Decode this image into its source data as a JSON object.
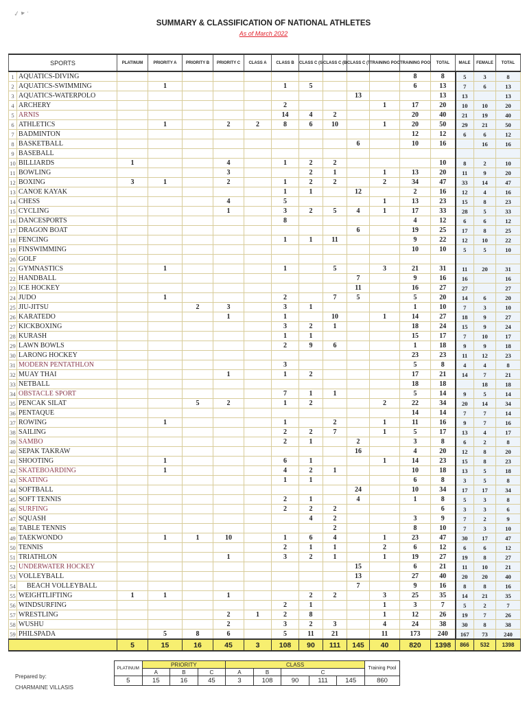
{
  "header": {
    "title": "SUMMARY & CLASSIFICATION OF NATIONAL ATHLETES",
    "subtitle": "As of March 2022"
  },
  "columns": [
    "SPORTS",
    "PLATINUM",
    "PRIORITY A",
    "PRIORITY B",
    "PRIORITY C",
    "CLASS A",
    "CLASS B",
    "CLASS C (SILVER)",
    "CLASS C (BRONZE)",
    "CLASS C (TEAM)",
    "TRAINING POOL A",
    "TRAINING POOL B",
    "TOTAL",
    "MALE",
    "FEMALE",
    "TOTAL"
  ],
  "colors": {
    "highlight_name": "#8a3a4a",
    "totals_bg": "#f7ef70",
    "subtitle": "#e0202a"
  },
  "rows": [
    {
      "n": "1",
      "sport": "AQUATICS-DIVING",
      "v": [
        "",
        "",
        "",
        "",
        "",
        "",
        "",
        "",
        "",
        "",
        "8",
        "8",
        "5",
        "3",
        "8"
      ]
    },
    {
      "n": "2",
      "sport": "AQUATICS-SWIMMING",
      "v": [
        "",
        "1",
        "",
        "",
        "",
        "1",
        "5",
        "",
        "",
        "",
        "6",
        "13",
        "7",
        "6",
        "13"
      ]
    },
    {
      "n": "3",
      "sport": "AQUATICS-WATERPOLO",
      "v": [
        "",
        "",
        "",
        "",
        "",
        "",
        "",
        "",
        "13",
        "",
        "",
        "13",
        "13",
        "",
        "13"
      ]
    },
    {
      "n": "4",
      "sport": "ARCHERY",
      "v": [
        "",
        "",
        "",
        "",
        "",
        "2",
        "",
        "",
        "",
        "1",
        "17",
        "20",
        "10",
        "10",
        "20"
      ]
    },
    {
      "n": "5",
      "sport": "ARNIS",
      "hl": true,
      "v": [
        "",
        "",
        "",
        "",
        "",
        "14",
        "4",
        "2",
        "",
        "",
        "20",
        "40",
        "21",
        "19",
        "40"
      ]
    },
    {
      "n": "6",
      "sport": "ATHLETICS",
      "v": [
        "",
        "1",
        "",
        "2",
        "2",
        "8",
        "6",
        "10",
        "",
        "1",
        "20",
        "50",
        "29",
        "21",
        "50"
      ]
    },
    {
      "n": "7",
      "sport": "BADMINTON",
      "v": [
        "",
        "",
        "",
        "",
        "",
        "",
        "",
        "",
        "",
        "",
        "12",
        "12",
        "6",
        "6",
        "12"
      ]
    },
    {
      "n": "8",
      "sport": "BASKETBALL",
      "v": [
        "",
        "",
        "",
        "",
        "",
        "",
        "",
        "",
        "6",
        "",
        "10",
        "16",
        "",
        "16",
        "16"
      ]
    },
    {
      "n": "9",
      "sport": "BASEBALL",
      "v": [
        "",
        "",
        "",
        "",
        "",
        "",
        "",
        "",
        "",
        "",
        "",
        "",
        "",
        "",
        ""
      ]
    },
    {
      "n": "10",
      "sport": "BILLIARDS",
      "v": [
        "1",
        "",
        "",
        "4",
        "",
        "1",
        "2",
        "2",
        "",
        "",
        "",
        "10",
        "8",
        "2",
        "10"
      ]
    },
    {
      "n": "11",
      "sport": "BOWLING",
      "v": [
        "",
        "",
        "",
        "3",
        "",
        "",
        "2",
        "1",
        "",
        "1",
        "13",
        "20",
        "11",
        "9",
        "20"
      ]
    },
    {
      "n": "12",
      "sport": "BOXING",
      "v": [
        "3",
        "1",
        "",
        "2",
        "",
        "1",
        "2",
        "2",
        "",
        "2",
        "34",
        "47",
        "33",
        "14",
        "47"
      ]
    },
    {
      "n": "13",
      "sport": "CANOE KAYAK",
      "v": [
        "",
        "",
        "",
        "",
        "",
        "1",
        "1",
        "",
        "12",
        "",
        "2",
        "16",
        "12",
        "4",
        "16"
      ]
    },
    {
      "n": "14",
      "sport": "CHESS",
      "v": [
        "",
        "",
        "",
        "4",
        "",
        "5",
        "",
        "",
        "",
        "1",
        "13",
        "23",
        "15",
        "8",
        "23"
      ]
    },
    {
      "n": "15",
      "sport": "CYCLING",
      "v": [
        "",
        "",
        "",
        "1",
        "",
        "3",
        "2",
        "5",
        "4",
        "1",
        "17",
        "33",
        "28",
        "5",
        "33"
      ]
    },
    {
      "n": "16",
      "sport": "DANCESPORTS",
      "v": [
        "",
        "",
        "",
        "",
        "",
        "8",
        "",
        "",
        "",
        "",
        "4",
        "12",
        "6",
        "6",
        "12"
      ]
    },
    {
      "n": "17",
      "sport": "DRAGON BOAT",
      "v": [
        "",
        "",
        "",
        "",
        "",
        "",
        "",
        "",
        "6",
        "",
        "19",
        "25",
        "17",
        "8",
        "25"
      ]
    },
    {
      "n": "18",
      "sport": "FENCING",
      "v": [
        "",
        "",
        "",
        "",
        "",
        "1",
        "1",
        "11",
        "",
        "",
        "9",
        "22",
        "12",
        "10",
        "22"
      ]
    },
    {
      "n": "19",
      "sport": "FINSWIMMING",
      "v": [
        "",
        "",
        "",
        "",
        "",
        "",
        "",
        "",
        "",
        "",
        "10",
        "10",
        "5",
        "5",
        "10"
      ]
    },
    {
      "n": "20",
      "sport": "GOLF",
      "v": [
        "",
        "",
        "",
        "",
        "",
        "",
        "",
        "",
        "",
        "",
        "",
        "",
        "",
        "",
        ""
      ]
    },
    {
      "n": "21",
      "sport": "GYMNASTICS",
      "v": [
        "",
        "1",
        "",
        "",
        "",
        "1",
        "",
        "5",
        "",
        "3",
        "21",
        "31",
        "11",
        "20",
        "31"
      ]
    },
    {
      "n": "22",
      "sport": "HANDBALL",
      "v": [
        "",
        "",
        "",
        "",
        "",
        "",
        "",
        "",
        "7",
        "",
        "9",
        "16",
        "16",
        "",
        "16"
      ]
    },
    {
      "n": "23",
      "sport": "ICE HOCKEY",
      "v": [
        "",
        "",
        "",
        "",
        "",
        "",
        "",
        "",
        "11",
        "",
        "16",
        "27",
        "27",
        "",
        "27"
      ]
    },
    {
      "n": "24",
      "sport": "JUDO",
      "v": [
        "",
        "1",
        "",
        "",
        "",
        "2",
        "",
        "7",
        "5",
        "",
        "5",
        "20",
        "14",
        "6",
        "20"
      ]
    },
    {
      "n": "25",
      "sport": "JIU-JITSU",
      "v": [
        "",
        "",
        "2",
        "3",
        "",
        "3",
        "1",
        "",
        "",
        "",
        "1",
        "10",
        "7",
        "3",
        "10"
      ]
    },
    {
      "n": "26",
      "sport": "KARATEDO",
      "v": [
        "",
        "",
        "",
        "1",
        "",
        "1",
        "",
        "10",
        "",
        "1",
        "14",
        "27",
        "18",
        "9",
        "27"
      ]
    },
    {
      "n": "27",
      "sport": "KICKBOXING",
      "v": [
        "",
        "",
        "",
        "",
        "",
        "3",
        "2",
        "1",
        "",
        "",
        "18",
        "24",
        "15",
        "9",
        "24"
      ]
    },
    {
      "n": "28",
      "sport": "KURASH",
      "v": [
        "",
        "",
        "",
        "",
        "",
        "1",
        "1",
        "",
        "",
        "",
        "15",
        "17",
        "7",
        "10",
        "17"
      ]
    },
    {
      "n": "29",
      "sport": "LAWN BOWLS",
      "v": [
        "",
        "",
        "",
        "",
        "",
        "2",
        "9",
        "6",
        "",
        "",
        "1",
        "18",
        "9",
        "9",
        "18"
      ]
    },
    {
      "n": "30",
      "sport": "LARONG HOCKEY",
      "v": [
        "",
        "",
        "",
        "",
        "",
        "",
        "",
        "",
        "",
        "",
        "23",
        "23",
        "11",
        "12",
        "23"
      ]
    },
    {
      "n": "31",
      "sport": "MODERN PENTATHLON",
      "hl": true,
      "v": [
        "",
        "",
        "",
        "",
        "",
        "3",
        "",
        "",
        "",
        "",
        "5",
        "8",
        "4",
        "4",
        "8"
      ]
    },
    {
      "n": "32",
      "sport": "MUAY THAI",
      "v": [
        "",
        "",
        "",
        "1",
        "",
        "1",
        "2",
        "",
        "",
        "",
        "17",
        "21",
        "14",
        "7",
        "21"
      ]
    },
    {
      "n": "33",
      "sport": "NETBALL",
      "v": [
        "",
        "",
        "",
        "",
        "",
        "",
        "",
        "",
        "",
        "",
        "18",
        "18",
        "",
        "18",
        "18"
      ]
    },
    {
      "n": "34",
      "sport": "OBSTACLE SPORT",
      "hl": true,
      "v": [
        "",
        "",
        "",
        "",
        "",
        "7",
        "1",
        "1",
        "",
        "",
        "5",
        "14",
        "9",
        "5",
        "14"
      ]
    },
    {
      "n": "35",
      "sport": "PENCAK SILAT",
      "v": [
        "",
        "",
        "5",
        "2",
        "",
        "1",
        "2",
        "",
        "",
        "2",
        "22",
        "34",
        "20",
        "14",
        "34"
      ]
    },
    {
      "n": "36",
      "sport": "PENTAQUE",
      "v": [
        "",
        "",
        "",
        "",
        "",
        "",
        "",
        "",
        "",
        "",
        "14",
        "14",
        "7",
        "7",
        "14"
      ]
    },
    {
      "n": "37",
      "sport": "ROWING",
      "v": [
        "",
        "1",
        "",
        "",
        "",
        "1",
        "",
        "2",
        "",
        "1",
        "11",
        "16",
        "9",
        "7",
        "16"
      ]
    },
    {
      "n": "38",
      "sport": "SAILING",
      "v": [
        "",
        "",
        "",
        "",
        "",
        "2",
        "2",
        "7",
        "",
        "1",
        "5",
        "17",
        "13",
        "4",
        "17"
      ]
    },
    {
      "n": "39",
      "sport": "SAMBO",
      "hl": true,
      "v": [
        "",
        "",
        "",
        "",
        "",
        "2",
        "1",
        "",
        "2",
        "",
        "3",
        "8",
        "6",
        "2",
        "8"
      ]
    },
    {
      "n": "40",
      "sport": "SEPAK TAKRAW",
      "v": [
        "",
        "",
        "",
        "",
        "",
        "",
        "",
        "",
        "16",
        "",
        "4",
        "20",
        "12",
        "8",
        "20"
      ]
    },
    {
      "n": "41",
      "sport": "SHOOTING",
      "v": [
        "",
        "1",
        "",
        "",
        "",
        "6",
        "1",
        "",
        "",
        "1",
        "14",
        "23",
        "15",
        "8",
        "23"
      ]
    },
    {
      "n": "42",
      "sport": "SKATEBOARDING",
      "hl": true,
      "v": [
        "",
        "1",
        "",
        "",
        "",
        "4",
        "2",
        "1",
        "",
        "",
        "10",
        "18",
        "13",
        "5",
        "18"
      ]
    },
    {
      "n": "43",
      "sport": "SKATING",
      "hl": true,
      "v": [
        "",
        "",
        "",
        "",
        "",
        "1",
        "1",
        "",
        "",
        "",
        "6",
        "8",
        "3",
        "5",
        "8"
      ]
    },
    {
      "n": "44",
      "sport": "SOFTBALL",
      "v": [
        "",
        "",
        "",
        "",
        "",
        "",
        "",
        "",
        "24",
        "",
        "10",
        "34",
        "17",
        "17",
        "34"
      ]
    },
    {
      "n": "45",
      "sport": "SOFT TENNIS",
      "v": [
        "",
        "",
        "",
        "",
        "",
        "2",
        "1",
        "",
        "4",
        "",
        "1",
        "8",
        "5",
        "3",
        "8"
      ]
    },
    {
      "n": "46",
      "sport": "SURFING",
      "hl": true,
      "v": [
        "",
        "",
        "",
        "",
        "",
        "2",
        "2",
        "2",
        "",
        "",
        "",
        "6",
        "3",
        "3",
        "6"
      ]
    },
    {
      "n": "47",
      "sport": "SQUASH",
      "v": [
        "",
        "",
        "",
        "",
        "",
        "",
        "4",
        "2",
        "",
        "",
        "3",
        "9",
        "7",
        "2",
        "9"
      ]
    },
    {
      "n": "48",
      "sport": "TABLE TENNIS",
      "v": [
        "",
        "",
        "",
        "",
        "",
        "",
        "",
        "2",
        "",
        "",
        "8",
        "10",
        "7",
        "3",
        "10"
      ]
    },
    {
      "n": "49",
      "sport": "TAEKWONDO",
      "v": [
        "",
        "1",
        "1",
        "10",
        "",
        "1",
        "6",
        "4",
        "",
        "1",
        "23",
        "47",
        "30",
        "17",
        "47"
      ]
    },
    {
      "n": "50",
      "sport": "TENNIS",
      "v": [
        "",
        "",
        "",
        "",
        "",
        "2",
        "1",
        "1",
        "",
        "2",
        "6",
        "12",
        "6",
        "6",
        "12"
      ]
    },
    {
      "n": "51",
      "sport": "TRIATHLON",
      "v": [
        "",
        "",
        "",
        "1",
        "",
        "3",
        "2",
        "1",
        "",
        "1",
        "19",
        "27",
        "19",
        "8",
        "27"
      ]
    },
    {
      "n": "52",
      "sport": "UNDERWATER HOCKEY",
      "hl": true,
      "v": [
        "",
        "",
        "",
        "",
        "",
        "",
        "",
        "",
        "15",
        "",
        "6",
        "21",
        "11",
        "10",
        "21"
      ]
    },
    {
      "n": "53",
      "sport": "VOLLEYBALL",
      "v": [
        "",
        "",
        "",
        "",
        "",
        "",
        "",
        "",
        "13",
        "",
        "27",
        "40",
        "20",
        "20",
        "40"
      ]
    },
    {
      "n": "54",
      "sport": "BEACH VOLLEYBALL",
      "indent": true,
      "v": [
        "",
        "",
        "",
        "",
        "",
        "",
        "",
        "",
        "7",
        "",
        "9",
        "16",
        "8",
        "8",
        "16"
      ]
    },
    {
      "n": "55",
      "sport": "WEIGHTLIFTING",
      "v": [
        "1",
        "1",
        "",
        "1",
        "",
        "",
        "2",
        "2",
        "",
        "3",
        "25",
        "35",
        "14",
        "21",
        "35"
      ]
    },
    {
      "n": "56",
      "sport": "WINDSURFING",
      "v": [
        "",
        "",
        "",
        "",
        "",
        "2",
        "1",
        "",
        "",
        "1",
        "3",
        "7",
        "5",
        "2",
        "7"
      ]
    },
    {
      "n": "57",
      "sport": "WRESTLING",
      "v": [
        "",
        "",
        "",
        "2",
        "1",
        "2",
        "8",
        "",
        "",
        "1",
        "12",
        "26",
        "19",
        "7",
        "26"
      ]
    },
    {
      "n": "58",
      "sport": "WUSHU",
      "v": [
        "",
        "",
        "",
        "2",
        "",
        "3",
        "2",
        "3",
        "",
        "4",
        "24",
        "38",
        "30",
        "8",
        "38"
      ]
    },
    {
      "n": "59",
      "sport": "PHILSPADA",
      "v": [
        "",
        "5",
        "8",
        "6",
        "",
        "5",
        "11",
        "21",
        "",
        "11",
        "173",
        "240",
        "167",
        "73",
        "240"
      ]
    }
  ],
  "totals": [
    "5",
    "15",
    "16",
    "45",
    "3",
    "108",
    "90",
    "111",
    "145",
    "40",
    "820",
    "1398",
    "866",
    "532",
    "1398"
  ],
  "prepared": {
    "label": "Prepared by:",
    "name": "CHARMAINE VILLASIS"
  },
  "summary": {
    "platinum_label": "PLATINUM",
    "priority_label": "PRIORITY",
    "class_label": "CLASS",
    "training_label": "Training Pool",
    "sub": [
      "A",
      "B",
      "C",
      "A",
      "B",
      "C"
    ],
    "values": [
      "5",
      "15",
      "16",
      "45",
      "3",
      "108",
      "90",
      "111",
      "145",
      "860"
    ]
  }
}
